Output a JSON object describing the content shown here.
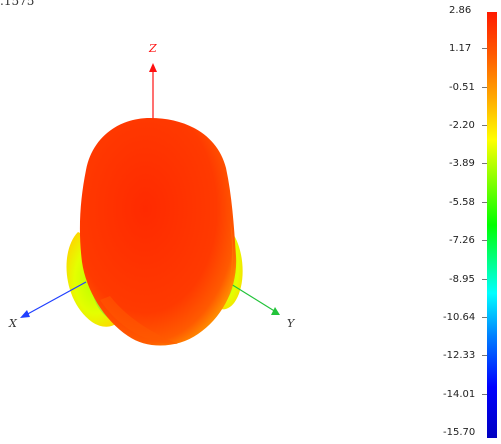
{
  "viewport": {
    "corner_readout": ".1575",
    "axes": {
      "x_label": "X",
      "y_label": "Y",
      "z_label": "Z"
    },
    "colors": {
      "x_axis": "#1f3fff",
      "y_axis": "#22c33a",
      "z_axis": "#ff1010"
    }
  },
  "colorbar": {
    "labels": [
      "2.86",
      "1.17",
      "-0.51",
      "-2.20",
      "-3.89",
      "-5.58",
      "-7.26",
      "-8.95",
      "-10.64",
      "-12.33",
      "-14.01",
      "-15.70"
    ],
    "max": 2.86,
    "min": -15.7
  }
}
